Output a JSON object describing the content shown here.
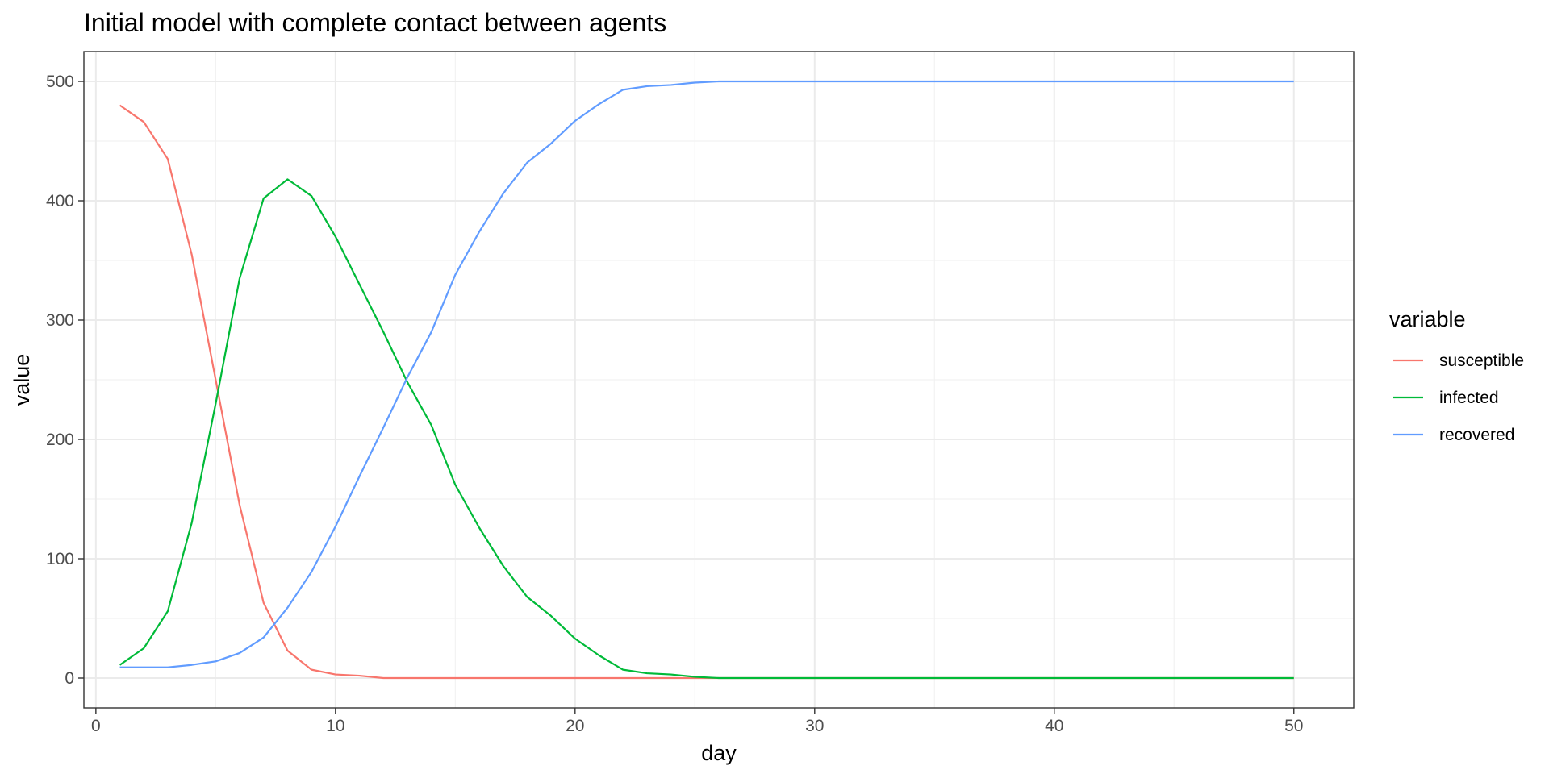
{
  "chart_data": {
    "type": "line",
    "title": "Initial model with complete contact between agents",
    "xlabel": "day",
    "ylabel": "value",
    "xlim": [
      -0.5,
      52.5
    ],
    "ylim": [
      -25,
      525
    ],
    "x_ticks": [
      0,
      10,
      20,
      30,
      40,
      50
    ],
    "y_ticks": [
      0,
      100,
      200,
      300,
      400,
      500
    ],
    "x_minor": [
      5,
      15,
      25,
      35,
      45
    ],
    "y_minor": [
      50,
      150,
      250,
      350,
      450
    ],
    "grid": true,
    "legend": {
      "title": "variable",
      "position": "right"
    },
    "x": [
      1,
      2,
      3,
      4,
      5,
      6,
      7,
      8,
      9,
      10,
      11,
      12,
      13,
      14,
      15,
      16,
      17,
      18,
      19,
      20,
      21,
      22,
      23,
      24,
      25,
      26,
      27,
      28,
      29,
      30,
      31,
      32,
      33,
      34,
      35,
      36,
      37,
      38,
      39,
      40,
      41,
      42,
      43,
      44,
      45,
      46,
      47,
      48,
      49,
      50
    ],
    "series": [
      {
        "name": "susceptible",
        "color": "#F8766D",
        "values": [
          480,
          466,
          435,
          355,
          250,
          145,
          63,
          23,
          7,
          3,
          2,
          0,
          0,
          0,
          0,
          0,
          0,
          0,
          0,
          0,
          0,
          0,
          0,
          0,
          0,
          0,
          0,
          0,
          0,
          0,
          0,
          0,
          0,
          0,
          0,
          0,
          0,
          0,
          0,
          0,
          0,
          0,
          0,
          0,
          0,
          0,
          0,
          0,
          0,
          0
        ]
      },
      {
        "name": "infected",
        "color": "#00BA38",
        "values": [
          11,
          25,
          56,
          130,
          230,
          335,
          402,
          418,
          404,
          370,
          330,
          290,
          248,
          212,
          162,
          126,
          94,
          68,
          52,
          33,
          19,
          7,
          4,
          3,
          1,
          0,
          0,
          0,
          0,
          0,
          0,
          0,
          0,
          0,
          0,
          0,
          0,
          0,
          0,
          0,
          0,
          0,
          0,
          0,
          0,
          0,
          0,
          0,
          0,
          0
        ]
      },
      {
        "name": "recovered",
        "color": "#619CFF",
        "values": [
          9,
          9,
          9,
          11,
          14,
          21,
          34,
          59,
          89,
          127,
          169,
          210,
          252,
          290,
          338,
          374,
          406,
          432,
          448,
          467,
          481,
          493,
          496,
          497,
          499,
          500,
          500,
          500,
          500,
          500,
          500,
          500,
          500,
          500,
          500,
          500,
          500,
          500,
          500,
          500,
          500,
          500,
          500,
          500,
          500,
          500,
          500,
          500,
          500,
          500
        ]
      }
    ]
  }
}
